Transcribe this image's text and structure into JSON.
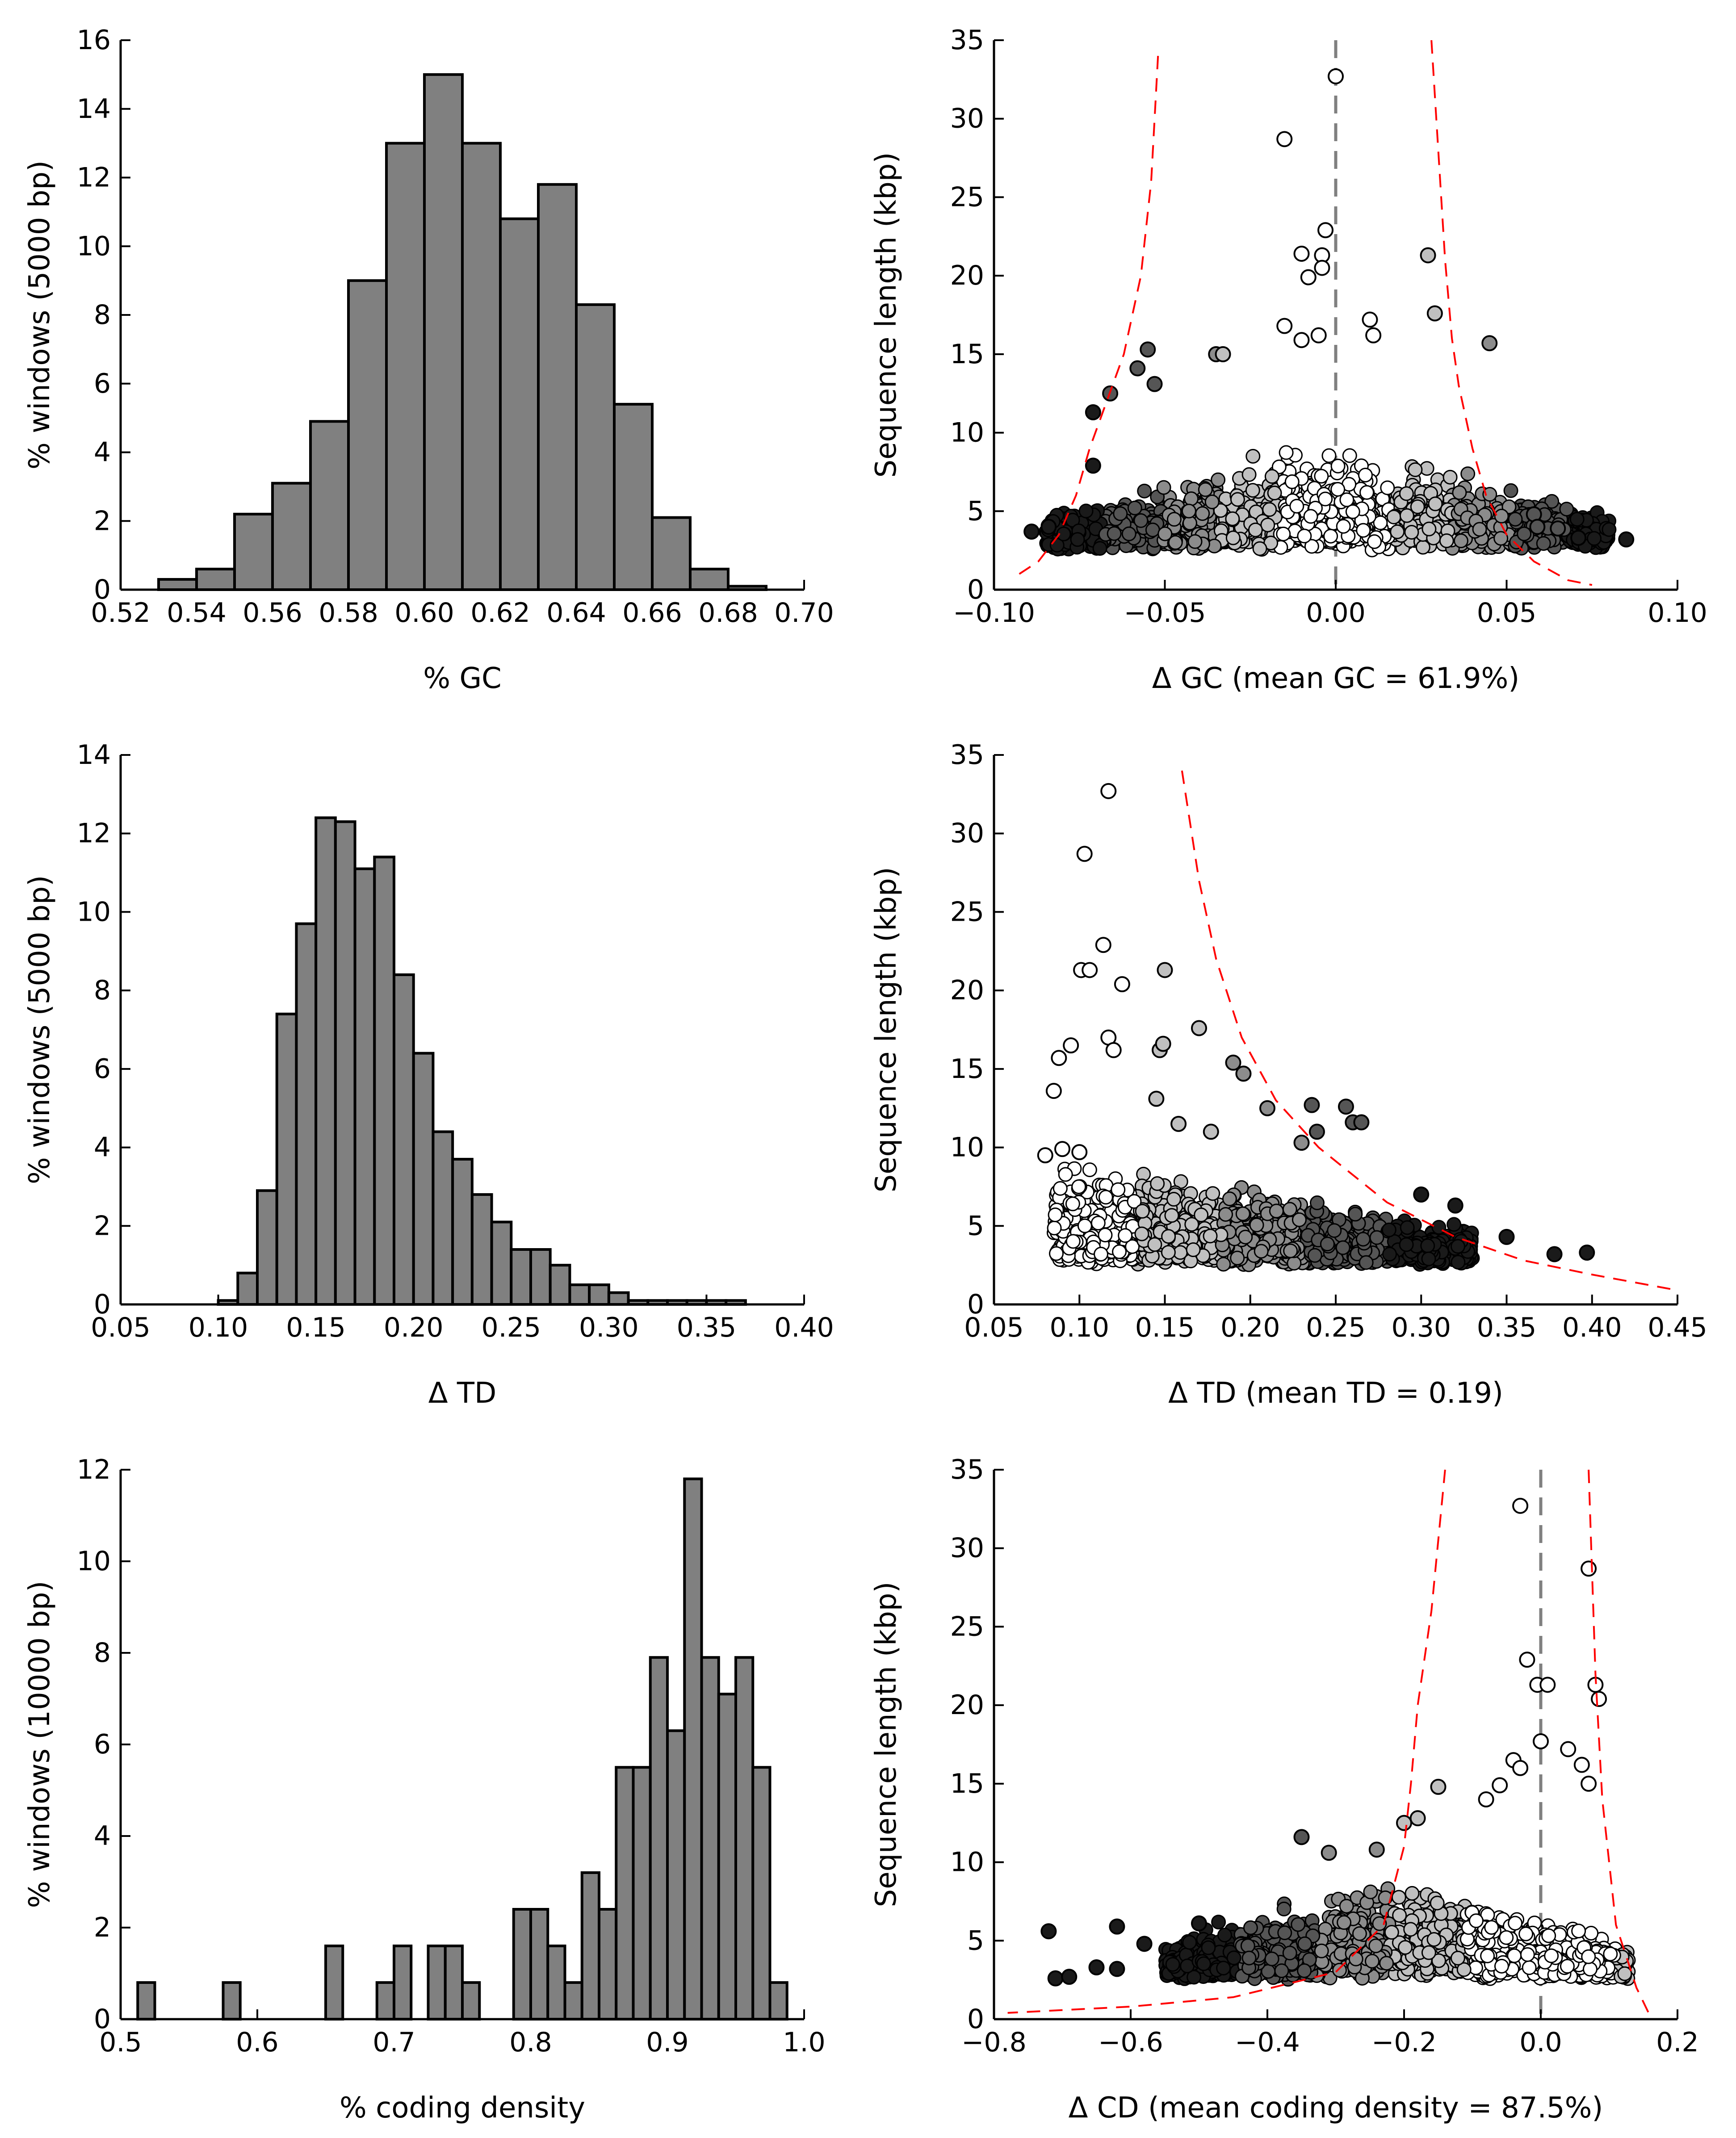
{
  "colors": {
    "bar_fill": "#808080",
    "bar_stroke": "#000000",
    "threshold_line": "#ff0000",
    "zero_line": "#808080",
    "point_stroke": "#000000",
    "point_shades": [
      "#ffffff",
      "#c0c0c0",
      "#8c8c8c",
      "#555555",
      "#1a1a1a"
    ]
  },
  "chart_data": [
    {
      "id": "gc-hist",
      "type": "bar",
      "xlabel": "% GC",
      "ylabel": "% windows (5000 bp)",
      "xlim": [
        0.52,
        0.7
      ],
      "ylim": [
        0,
        16
      ],
      "xticks": [
        "0.52",
        "0.54",
        "0.56",
        "0.58",
        "0.60",
        "0.62",
        "0.64",
        "0.66",
        "0.68",
        "0.70"
      ],
      "yticks": [
        "0",
        "2",
        "4",
        "6",
        "8",
        "10",
        "12",
        "14",
        "16"
      ],
      "bin_width": 0.01,
      "bin_starts": [
        0.53,
        0.54,
        0.55,
        0.56,
        0.57,
        0.58,
        0.59,
        0.6,
        0.61,
        0.62,
        0.63,
        0.64,
        0.65,
        0.66,
        0.67,
        0.68
      ],
      "values": [
        0.3,
        0.6,
        2.2,
        3.1,
        4.9,
        9.0,
        13.0,
        15.0,
        13.0,
        10.8,
        11.8,
        8.3,
        5.4,
        2.1,
        0.6,
        0.1
      ]
    },
    {
      "id": "gc-scatter",
      "type": "scatter",
      "xlabel": "Δ GC (mean GC = 61.9%)",
      "ylabel": "Sequence length (kbp)",
      "xlim": [
        -0.1,
        0.1
      ],
      "ylim": [
        0,
        35
      ],
      "xticks": [
        "−0.10",
        "−0.05",
        "0.00",
        "0.05",
        "0.10"
      ],
      "yticks": [
        "0",
        "5",
        "10",
        "15",
        "20",
        "25",
        "30",
        "35"
      ],
      "zero_line": 0.0,
      "threshold_lower": [
        [
          -0.052,
          34
        ],
        [
          -0.054,
          26
        ],
        [
          -0.057,
          20
        ],
        [
          -0.062,
          15
        ],
        [
          -0.067,
          12
        ],
        [
          -0.072,
          9
        ],
        [
          -0.076,
          6
        ],
        [
          -0.081,
          3.5
        ],
        [
          -0.087,
          1.8
        ],
        [
          -0.094,
          0.8
        ]
      ],
      "threshold_upper": [
        [
          0.028,
          35
        ],
        [
          0.03,
          28
        ],
        [
          0.032,
          21
        ],
        [
          0.034,
          16
        ],
        [
          0.036,
          13
        ],
        [
          0.04,
          9
        ],
        [
          0.044,
          6
        ],
        [
          0.05,
          3.5
        ],
        [
          0.058,
          1.8
        ],
        [
          0.068,
          0.6
        ],
        [
          0.075,
          0.3
        ]
      ],
      "bulk": {
        "x_range": [
          -0.085,
          0.08
        ],
        "y_min": 2.5,
        "count": 1800
      },
      "points": [
        [
          0.0,
          32.7
        ],
        [
          -0.015,
          28.7
        ],
        [
          -0.003,
          22.9
        ],
        [
          -0.004,
          21.3
        ],
        [
          -0.004,
          20.5
        ],
        [
          -0.01,
          21.4
        ],
        [
          -0.008,
          19.9
        ],
        [
          0.01,
          17.2
        ],
        [
          0.011,
          16.2
        ],
        [
          0.027,
          21.3
        ],
        [
          0.029,
          17.6
        ],
        [
          0.045,
          15.7
        ],
        [
          -0.015,
          16.8
        ],
        [
          -0.005,
          16.2
        ],
        [
          -0.01,
          15.9
        ],
        [
          -0.055,
          15.3
        ],
        [
          -0.035,
          15.0
        ],
        [
          -0.033,
          15.0
        ],
        [
          -0.066,
          12.5
        ],
        [
          -0.071,
          11.3
        ],
        [
          -0.053,
          13.1
        ],
        [
          -0.058,
          14.1
        ],
        [
          -0.089,
          3.7
        ],
        [
          -0.084,
          4.0
        ],
        [
          -0.071,
          7.9
        ],
        [
          0.085,
          3.2
        ],
        [
          0.071,
          3.3
        ],
        [
          0.065,
          3.9
        ],
        [
          0.058,
          4.8
        ],
        [
          0.059,
          4.0
        ]
      ]
    },
    {
      "id": "td-hist",
      "type": "bar",
      "xlabel": "Δ TD",
      "ylabel": "% windows (5000 bp)",
      "xlim": [
        0.05,
        0.4
      ],
      "ylim": [
        0,
        14
      ],
      "xticks": [
        "0.05",
        "0.10",
        "0.15",
        "0.20",
        "0.25",
        "0.30",
        "0.35",
        "0.40"
      ],
      "yticks": [
        "0",
        "2",
        "4",
        "6",
        "8",
        "10",
        "12",
        "14"
      ],
      "bin_width": 0.01,
      "bin_starts": [
        0.1,
        0.11,
        0.12,
        0.13,
        0.14,
        0.15,
        0.16,
        0.17,
        0.18,
        0.19,
        0.2,
        0.21,
        0.22,
        0.23,
        0.24,
        0.25,
        0.26,
        0.27,
        0.28,
        0.29,
        0.3,
        0.31,
        0.32,
        0.33,
        0.34,
        0.35,
        0.36
      ],
      "values": [
        0.1,
        0.8,
        2.9,
        7.4,
        9.7,
        12.4,
        12.3,
        11.1,
        11.4,
        8.4,
        6.4,
        4.4,
        3.7,
        2.8,
        2.1,
        1.4,
        1.4,
        1.0,
        0.5,
        0.5,
        0.3,
        0.1,
        0.1,
        0.1,
        0.1,
        0.1,
        0.1
      ]
    },
    {
      "id": "td-scatter",
      "type": "scatter",
      "xlabel": "Δ TD (mean TD = 0.19)",
      "ylabel": "Sequence length (kbp)",
      "xlim": [
        0.05,
        0.45
      ],
      "ylim": [
        0,
        35
      ],
      "xticks": [
        "0.05",
        "0.10",
        "0.15",
        "0.20",
        "0.25",
        "0.30",
        "0.35",
        "0.40",
        "0.45"
      ],
      "yticks": [
        "0",
        "5",
        "10",
        "15",
        "20",
        "25",
        "30",
        "35"
      ],
      "threshold_curve": [
        [
          0.16,
          34
        ],
        [
          0.17,
          27
        ],
        [
          0.18,
          22
        ],
        [
          0.195,
          17
        ],
        [
          0.215,
          13
        ],
        [
          0.24,
          10
        ],
        [
          0.28,
          6.5
        ],
        [
          0.32,
          4.3
        ],
        [
          0.36,
          2.8
        ],
        [
          0.4,
          1.9
        ],
        [
          0.45,
          0.9
        ]
      ],
      "bulk": {
        "x_range": [
          0.085,
          0.33
        ],
        "y_min": 2.5,
        "count": 1800
      },
      "points": [
        [
          0.117,
          32.7
        ],
        [
          0.103,
          28.7
        ],
        [
          0.114,
          22.9
        ],
        [
          0.101,
          21.3
        ],
        [
          0.106,
          21.3
        ],
        [
          0.125,
          20.4
        ],
        [
          0.15,
          21.3
        ],
        [
          0.095,
          16.5
        ],
        [
          0.088,
          15.7
        ],
        [
          0.085,
          13.6
        ],
        [
          0.117,
          17.0
        ],
        [
          0.12,
          16.2
        ],
        [
          0.147,
          16.2
        ],
        [
          0.149,
          16.6
        ],
        [
          0.17,
          17.6
        ],
        [
          0.19,
          15.4
        ],
        [
          0.196,
          14.7
        ],
        [
          0.145,
          13.1
        ],
        [
          0.236,
          12.7
        ],
        [
          0.256,
          12.6
        ],
        [
          0.26,
          11.6
        ],
        [
          0.265,
          11.6
        ],
        [
          0.239,
          11.0
        ],
        [
          0.21,
          12.5
        ],
        [
          0.23,
          10.3
        ],
        [
          0.3,
          7.0
        ],
        [
          0.32,
          6.3
        ],
        [
          0.35,
          4.3
        ],
        [
          0.378,
          3.2
        ],
        [
          0.397,
          3.3
        ],
        [
          0.08,
          9.5
        ],
        [
          0.09,
          9.9
        ],
        [
          0.1,
          9.7
        ],
        [
          0.158,
          11.5
        ],
        [
          0.177,
          11.0
        ]
      ]
    },
    {
      "id": "cd-hist",
      "type": "bar",
      "xlabel": "% coding density",
      "ylabel": "% windows (10000 bp)",
      "xlim": [
        0.5,
        1.0
      ],
      "ylim": [
        0,
        12
      ],
      "xticks": [
        "0.5",
        "0.6",
        "0.7",
        "0.8",
        "0.9",
        "1.0"
      ],
      "yticks": [
        "0",
        "2",
        "4",
        "6",
        "8",
        "10",
        "12"
      ],
      "bin_width": 0.0125,
      "bin_starts": [
        0.5125,
        0.575,
        0.65,
        0.6875,
        0.7,
        0.725,
        0.7375,
        0.75,
        0.7875,
        0.8,
        0.8125,
        0.825,
        0.8375,
        0.85,
        0.8625,
        0.875,
        0.8875,
        0.9,
        0.9125,
        0.925,
        0.9375,
        0.95,
        0.9625,
        0.975
      ],
      "values": [
        0.8,
        0.8,
        1.6,
        0.8,
        1.6,
        1.6,
        1.6,
        0.8,
        2.4,
        2.4,
        1.6,
        0.8,
        3.2,
        2.4,
        5.5,
        5.5,
        7.9,
        6.3,
        11.8,
        7.9,
        7.1,
        7.9,
        5.5,
        0.8
      ]
    },
    {
      "id": "cd-scatter",
      "type": "scatter",
      "xlabel": "Δ CD (mean coding density = 87.5%)",
      "ylabel": "Sequence length (kbp)",
      "xlim": [
        -0.8,
        0.2
      ],
      "ylim": [
        0,
        35
      ],
      "xticks": [
        "−0.8",
        "−0.6",
        "−0.4",
        "−0.2",
        "0.0",
        "0.2"
      ],
      "yticks": [
        "0",
        "5",
        "10",
        "15",
        "20",
        "25",
        "30",
        "35"
      ],
      "zero_line": 0.0,
      "threshold_lower": [
        [
          -0.14,
          35
        ],
        [
          -0.16,
          26
        ],
        [
          -0.18,
          20
        ],
        [
          -0.19,
          15
        ],
        [
          -0.2,
          11
        ],
        [
          -0.23,
          6
        ],
        [
          -0.3,
          3
        ],
        [
          -0.45,
          1.4
        ],
        [
          -0.6,
          0.8
        ],
        [
          -0.78,
          0.4
        ]
      ],
      "threshold_upper": [
        [
          0.07,
          35
        ],
        [
          0.08,
          22
        ],
        [
          0.09,
          14
        ],
        [
          0.11,
          6
        ],
        [
          0.14,
          2
        ],
        [
          0.16,
          0.2
        ]
      ],
      "bulk": {
        "x_range": [
          -0.55,
          0.13
        ],
        "y_min": 2.5,
        "count": 1800
      },
      "points": [
        [
          -0.03,
          32.7
        ],
        [
          0.07,
          28.7
        ],
        [
          -0.02,
          22.9
        ],
        [
          -0.005,
          21.3
        ],
        [
          0.01,
          21.3
        ],
        [
          0.08,
          21.3
        ],
        [
          0.085,
          20.4
        ],
        [
          0.0,
          17.7
        ],
        [
          0.04,
          17.2
        ],
        [
          0.06,
          16.2
        ],
        [
          0.07,
          15.0
        ],
        [
          -0.04,
          16.5
        ],
        [
          -0.03,
          16.0
        ],
        [
          -0.06,
          14.9
        ],
        [
          -0.08,
          14.0
        ],
        [
          -0.15,
          14.8
        ],
        [
          -0.18,
          12.8
        ],
        [
          -0.2,
          12.5
        ],
        [
          -0.35,
          11.6
        ],
        [
          -0.31,
          10.6
        ],
        [
          -0.24,
          10.8
        ],
        [
          -0.5,
          6.1
        ],
        [
          -0.58,
          4.8
        ],
        [
          -0.62,
          5.9
        ],
        [
          -0.72,
          5.6
        ],
        [
          -0.71,
          2.6
        ],
        [
          -0.69,
          2.7
        ],
        [
          -0.65,
          3.3
        ],
        [
          -0.62,
          3.2
        ]
      ]
    }
  ]
}
